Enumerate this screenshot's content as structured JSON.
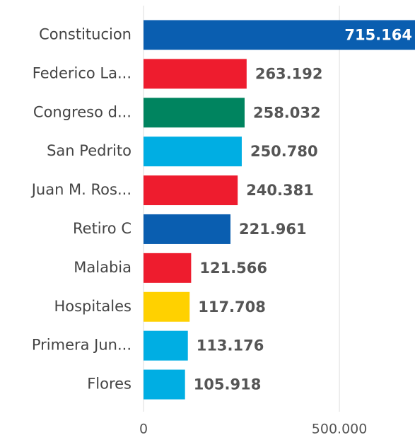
{
  "chart_data": {
    "type": "bar",
    "orientation": "horizontal",
    "categories": [
      "Constitucion",
      "Federico La...",
      "Congreso d...",
      "San Pedrito",
      "Juan M. Ros...",
      "Retiro C",
      "Malabia",
      "Hospitales",
      "Primera Jun...",
      "Flores"
    ],
    "values": [
      715164,
      263192,
      258032,
      250780,
      240381,
      221961,
      121566,
      117708,
      113176,
      105918
    ],
    "value_labels": [
      "715.164",
      "263.192",
      "258.032",
      "250.780",
      "240.381",
      "221.961",
      "121.566",
      "117.708",
      "113.176",
      "105.918"
    ],
    "colors": [
      "#0a5eb0",
      "#ee1c2e",
      "#00845f",
      "#00aee3",
      "#ee1c2e",
      "#0a5eb0",
      "#ee1c2e",
      "#ffd100",
      "#00aee3",
      "#00aee3"
    ],
    "xlim": [
      0,
      693000
    ],
    "xticks": [
      0,
      {
        "value": 500000,
        "label": "500.000"
      }
    ],
    "grid": true
  }
}
